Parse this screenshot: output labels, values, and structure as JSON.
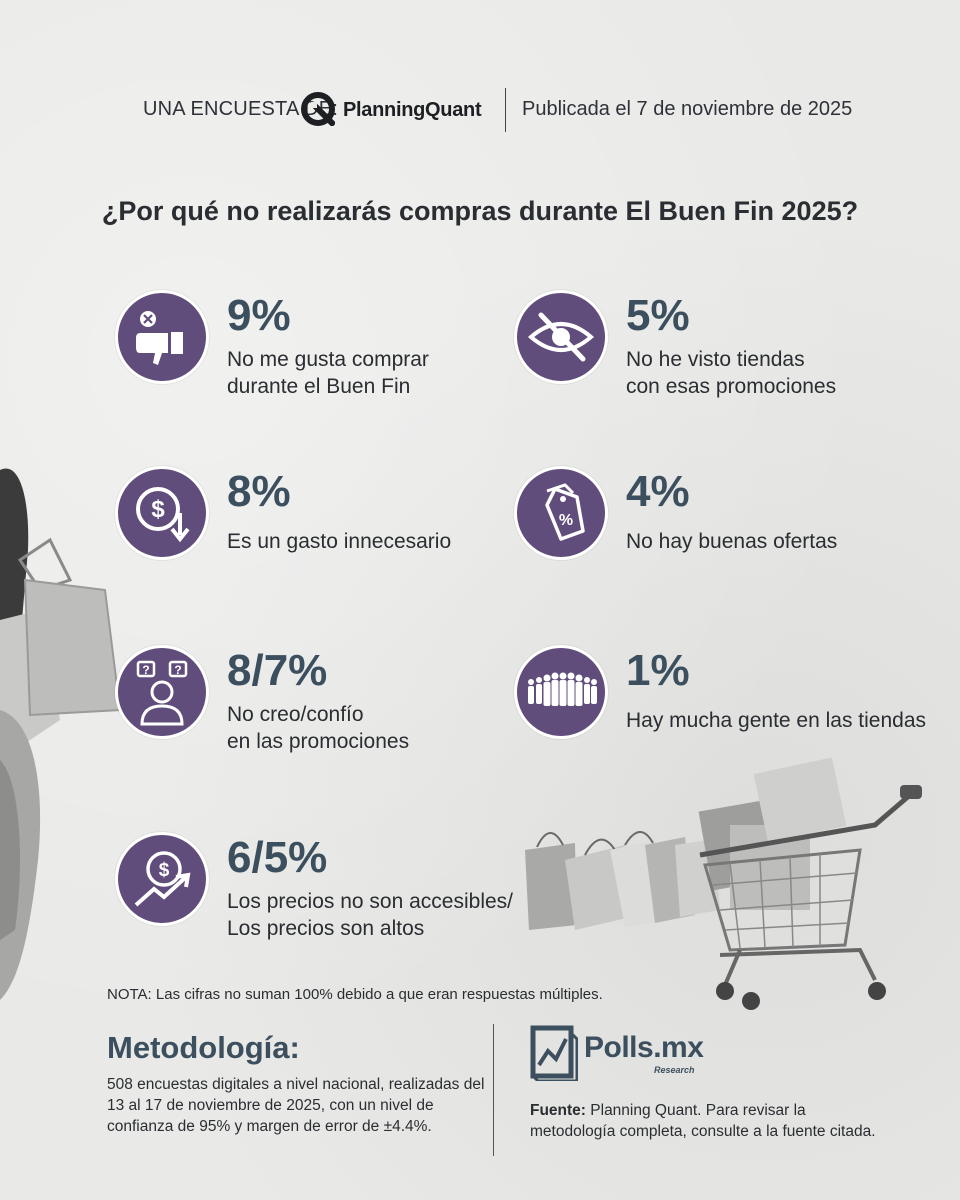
{
  "header": {
    "survey_by": "UNA ENCUESTA DE:",
    "brand": "PlanningQuant",
    "published": "Publicada el 7 de noviembre de 2025"
  },
  "question": "¿Por qué no realizarás compras durante El Buen Fin 2025?",
  "items": [
    {
      "pct": "9%",
      "line1": "No me gusta comprar",
      "line2": "durante el Buen Fin",
      "icon": "thumbs-down-icon"
    },
    {
      "pct": "5%",
      "line1": "No he visto tiendas",
      "line2": "con esas promociones",
      "icon": "eye-slash-icon"
    },
    {
      "pct": "8%",
      "line1": "Es un gasto innecesario",
      "line2": "",
      "icon": "dollar-down-icon"
    },
    {
      "pct": "4%",
      "line1": "No hay buenas ofertas",
      "line2": "",
      "icon": "discount-tag-icon"
    },
    {
      "pct": "8/7%",
      "line1": "No creo/confío",
      "line2": "en las promociones",
      "icon": "doubt-person-icon"
    },
    {
      "pct": "1%",
      "line1": "Hay mucha gente en las tiendas",
      "line2": "",
      "icon": "crowd-icon"
    },
    {
      "pct": "6/5%",
      "line1": "Los precios no son accesibles/",
      "line2": "Los precios son altos",
      "icon": "price-rise-icon"
    }
  ],
  "note": "NOTA: Las cifras no suman 100% debido a que eran respuestas múltiples.",
  "methodology": {
    "title": "Metodología:",
    "body": "508 encuestas digitales a nivel nacional, realizadas del 13 al 17 de noviembre de 2025, con un nivel de confianza de 95% y margen de error de ±4.4%."
  },
  "footer": {
    "polls_name": "Polls.mx",
    "polls_sub": "Research",
    "source_label": "Fuente:",
    "source_text": "Planning Quant. Para revisar la metodología completa, consulte a la fuente citada."
  },
  "colors": {
    "badge": "#614d7c",
    "accent_text": "#3c4f5e",
    "background": "#e9e9e7"
  }
}
